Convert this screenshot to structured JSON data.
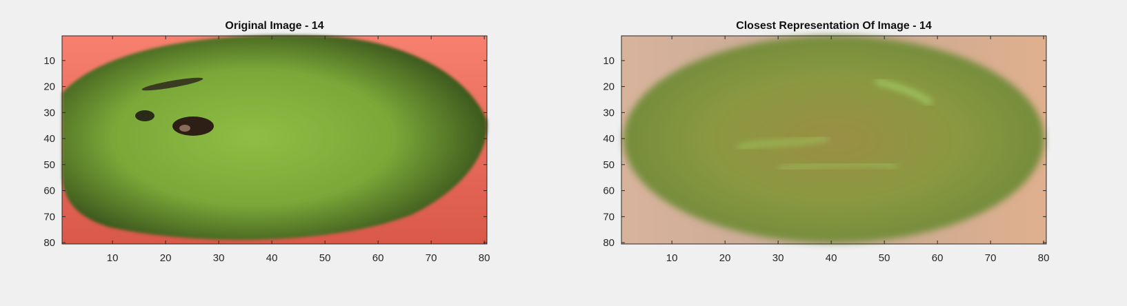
{
  "figure": {
    "background": "#f0f0f0",
    "axes": [
      {
        "title": "Original Image - 14",
        "xticks": [
          10,
          20,
          30,
          40,
          50,
          60,
          70,
          80
        ],
        "yticks": [
          10,
          20,
          30,
          40,
          50,
          60,
          70,
          80
        ],
        "xlim": [
          0.5,
          80.5
        ],
        "ylim": [
          0.5,
          80.5
        ],
        "image": {
          "kind": "green-mango-on-red",
          "background_color": "#f0806b",
          "fruit_color": "#7fae3c"
        }
      },
      {
        "title": "Closest Representation Of Image - 14",
        "xticks": [
          10,
          20,
          30,
          40,
          50,
          60,
          70,
          80
        ],
        "yticks": [
          10,
          20,
          30,
          40,
          50,
          60,
          70,
          80
        ],
        "xlim": [
          0.5,
          80.5
        ],
        "ylim": [
          0.5,
          80.5
        ],
        "image": {
          "kind": "blurred-reconstruction",
          "background_color": "#c9a893",
          "fruit_color": "#8e9a45"
        }
      }
    ]
  }
}
